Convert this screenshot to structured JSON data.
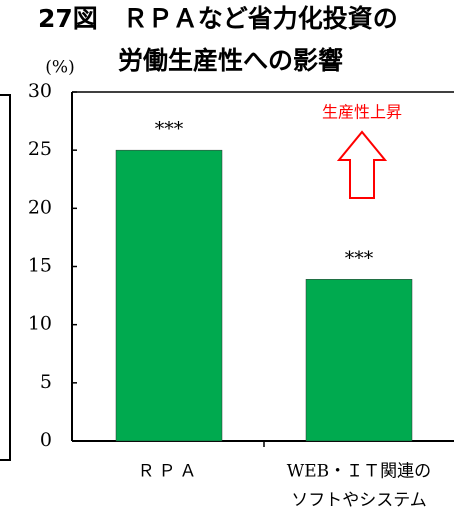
{
  "chart_data": {
    "type": "bar",
    "title": "27図　ＲＰＡなど省力化投資の",
    "subtitle": "労働生産性への影響",
    "y_label": "(%)",
    "categories": [
      "ＲＰＡ",
      [
        "WEB・ＩＴ関連の",
        "ソフトやシステム"
      ]
    ],
    "values": [
      25,
      13.9
    ],
    "value_labels": [
      "***",
      "***"
    ],
    "color": "#00aa4f",
    "annotation": "生産性上昇",
    "annotation_color": "#ff0000",
    "ylim": [
      0,
      30
    ],
    "yticks": [
      0,
      5,
      10,
      15,
      20,
      25,
      30
    ]
  }
}
